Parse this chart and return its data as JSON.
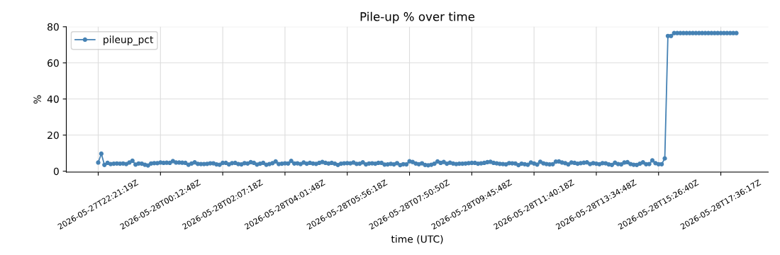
{
  "chart_data": {
    "type": "line",
    "title": "Pile-up % over time",
    "xlabel": "time (UTC)",
    "ylabel": "%",
    "categories": [
      "2026-05-27T22:21:19Z",
      null,
      null,
      null,
      null,
      null,
      null,
      null,
      null,
      null,
      null,
      null,
      null,
      null,
      null,
      null,
      null,
      null,
      null,
      null,
      "2026-05-28T00:12:48Z",
      null,
      null,
      null,
      null,
      null,
      null,
      null,
      null,
      null,
      null,
      null,
      null,
      null,
      null,
      null,
      null,
      null,
      null,
      null,
      "2026-05-28T02:07:18Z",
      null,
      null,
      null,
      null,
      null,
      null,
      null,
      null,
      null,
      null,
      null,
      null,
      null,
      null,
      null,
      null,
      null,
      null,
      null,
      "2026-05-28T04:01:48Z",
      null,
      null,
      null,
      null,
      null,
      null,
      null,
      null,
      null,
      null,
      null,
      null,
      null,
      null,
      null,
      null,
      null,
      null,
      null,
      "2026-05-28T05:56:18Z",
      null,
      null,
      null,
      null,
      null,
      null,
      null,
      null,
      null,
      null,
      null,
      null,
      null,
      null,
      null,
      null,
      null,
      null,
      null,
      "2026-05-28T07:50:50Z",
      null,
      null,
      null,
      null,
      null,
      null,
      null,
      null,
      null,
      null,
      null,
      null,
      null,
      null,
      null,
      null,
      null,
      null,
      null,
      "2026-05-28T09:45:48Z",
      null,
      null,
      null,
      null,
      null,
      null,
      null,
      null,
      null,
      null,
      null,
      null,
      null,
      null,
      null,
      null,
      null,
      null,
      null,
      "2026-05-28T11:40:18Z",
      null,
      null,
      null,
      null,
      null,
      null,
      null,
      null,
      null,
      null,
      null,
      null,
      null,
      null,
      null,
      null,
      null,
      null,
      null,
      "2026-05-28T13:34:48Z",
      null,
      null,
      null,
      null,
      null,
      null,
      null,
      null,
      null,
      null,
      null,
      null,
      null,
      null,
      null,
      null,
      null,
      null,
      null,
      "2026-05-28T15:26:40Z",
      null,
      null,
      null,
      null,
      null,
      null,
      null,
      null,
      null,
      null,
      null,
      null,
      null,
      null,
      null,
      null,
      null,
      null,
      null,
      "2026-05-28T17:36:17Z",
      null,
      null,
      null,
      null,
      null
    ],
    "series": [
      {
        "name": "pileup_pct",
        "color": "#4682b4",
        "values": [
          4.8,
          9.7,
          3.5,
          4.6,
          4.0,
          4.2,
          4.3,
          4.2,
          4.3,
          4.0,
          4.8,
          5.8,
          3.7,
          4.3,
          4.2,
          3.6,
          3.2,
          4.3,
          4.5,
          4.5,
          4.8,
          4.6,
          4.7,
          4.6,
          5.6,
          4.8,
          4.8,
          4.7,
          4.6,
          3.6,
          4.3,
          4.9,
          4.1,
          4.0,
          4.0,
          4.1,
          4.4,
          4.4,
          3.8,
          3.6,
          4.6,
          4.6,
          3.8,
          4.5,
          4.6,
          4.0,
          3.8,
          4.5,
          4.3,
          5.0,
          4.6,
          3.7,
          4.2,
          4.6,
          3.6,
          4.0,
          4.5,
          5.4,
          4.0,
          4.2,
          4.4,
          4.3,
          5.7,
          4.3,
          4.4,
          4.0,
          4.8,
          4.2,
          4.6,
          4.3,
          4.1,
          4.6,
          5.1,
          4.6,
          4.3,
          4.6,
          4.2,
          3.5,
          4.2,
          4.4,
          4.5,
          4.4,
          4.8,
          4.1,
          4.2,
          4.9,
          3.8,
          4.3,
          4.4,
          4.2,
          4.6,
          4.6,
          3.7,
          3.8,
          4.1,
          3.8,
          4.5,
          3.4,
          3.9,
          3.8,
          5.5,
          5.1,
          4.3,
          3.9,
          4.4,
          3.5,
          3.3,
          3.6,
          4.2,
          5.4,
          4.6,
          5.1,
          4.2,
          4.7,
          4.3,
          4.0,
          4.2,
          4.2,
          4.3,
          4.5,
          4.6,
          4.6,
          4.2,
          4.4,
          4.6,
          5.0,
          5.2,
          4.6,
          4.4,
          4.1,
          4.0,
          3.8,
          4.5,
          4.4,
          4.3,
          3.4,
          4.2,
          3.9,
          3.6,
          4.8,
          4.3,
          3.7,
          5.2,
          4.4,
          4.0,
          3.8,
          3.9,
          5.3,
          5.4,
          4.8,
          4.5,
          3.8,
          4.8,
          4.6,
          4.2,
          4.5,
          4.7,
          4.9,
          4.0,
          4.5,
          4.2,
          3.9,
          4.5,
          4.4,
          3.8,
          3.5,
          4.7,
          4.0,
          3.8,
          4.8,
          5.0,
          4.0,
          3.6,
          3.5,
          4.2,
          4.9,
          3.9,
          4.0,
          6.0,
          4.5,
          3.9,
          3.9,
          7.1,
          74.9,
          74.9,
          76.5,
          76.5,
          76.5,
          76.5,
          76.5,
          76.5,
          76.5,
          76.5,
          76.5,
          76.5,
          76.5,
          76.5,
          76.5,
          76.5,
          76.5,
          76.5,
          76.5,
          76.5,
          76.5,
          76.5,
          76.5
        ]
      }
    ],
    "ylim": [
      -0.5,
      80
    ],
    "yticks": [
      0,
      20,
      40,
      60,
      80
    ],
    "grid": true,
    "legend": "top left",
    "marker": "circle",
    "line_style": "solid"
  }
}
